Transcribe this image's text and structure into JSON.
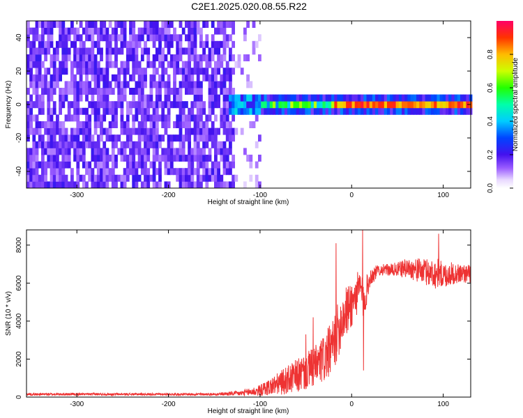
{
  "figure": {
    "title": "C2E1.2025.020.08.55.R22"
  },
  "chart_data": [
    {
      "type": "heatmap",
      "title": "C2E1.2025.020.08.55.R22",
      "xlabel": "Height of straight line (km)",
      "ylabel": "Frequency (Hz)",
      "xlim": [
        -355,
        130
      ],
      "ylim": [
        -50,
        50
      ],
      "x_ticks": [
        -300,
        -200,
        -100,
        0,
        100
      ],
      "y_ticks": [
        -40,
        -20,
        0,
        20,
        40
      ],
      "colorbar": {
        "label": "Normalized spectral amplitude",
        "range": [
          0,
          1
        ],
        "ticks": [
          0.0,
          0.2,
          0.4,
          0.6,
          0.8
        ]
      },
      "description_values": {
        "noise_region_x": [
          -355,
          -100
        ],
        "signal_center_hz": 0,
        "signal_bandwidth_hz": [
          -4,
          4
        ],
        "peak_amplitude_region_x": [
          -20,
          130
        ]
      }
    },
    {
      "type": "line",
      "xlabel": "Height of straight line (km)",
      "ylabel": "SNR (10 * v/v)",
      "xlim": [
        -355,
        130
      ],
      "ylim": [
        0,
        8800
      ],
      "x_ticks": [
        -300,
        -200,
        -100,
        0,
        100
      ],
      "y_ticks": [
        0,
        2000,
        4000,
        6000,
        8000
      ],
      "color": "#ee3333",
      "envelope": {
        "x": [
          -355,
          -300,
          -250,
          -200,
          -150,
          -120,
          -100,
          -80,
          -60,
          -40,
          -30,
          -20,
          -17,
          -10,
          0,
          10,
          13,
          20,
          30,
          40,
          50,
          60,
          70,
          80,
          90,
          95,
          100,
          110,
          120,
          130
        ],
        "mean": [
          150,
          150,
          150,
          150,
          150,
          200,
          350,
          700,
          1100,
          1600,
          2000,
          2700,
          3200,
          4200,
          4900,
          5800,
          5000,
          6300,
          6700,
          6700,
          6700,
          6800,
          6700,
          6600,
          6500,
          6500,
          6400,
          6500,
          6500,
          6500
        ],
        "spread": [
          60,
          60,
          60,
          60,
          60,
          150,
          300,
          600,
          900,
          1100,
          1300,
          1400,
          1500,
          1400,
          1300,
          1000,
          1100,
          500,
          300,
          300,
          400,
          500,
          600,
          700,
          800,
          800,
          700,
          600,
          500,
          500
        ]
      },
      "spikes": [
        {
          "x": -17,
          "y": 8100
        },
        {
          "x": 12,
          "y": 8800
        },
        {
          "x": 13,
          "y": 1400
        },
        {
          "x": -42,
          "y": 4200
        },
        {
          "x": -50,
          "y": 3300
        },
        {
          "x": 95,
          "y": 8600
        }
      ]
    }
  ]
}
